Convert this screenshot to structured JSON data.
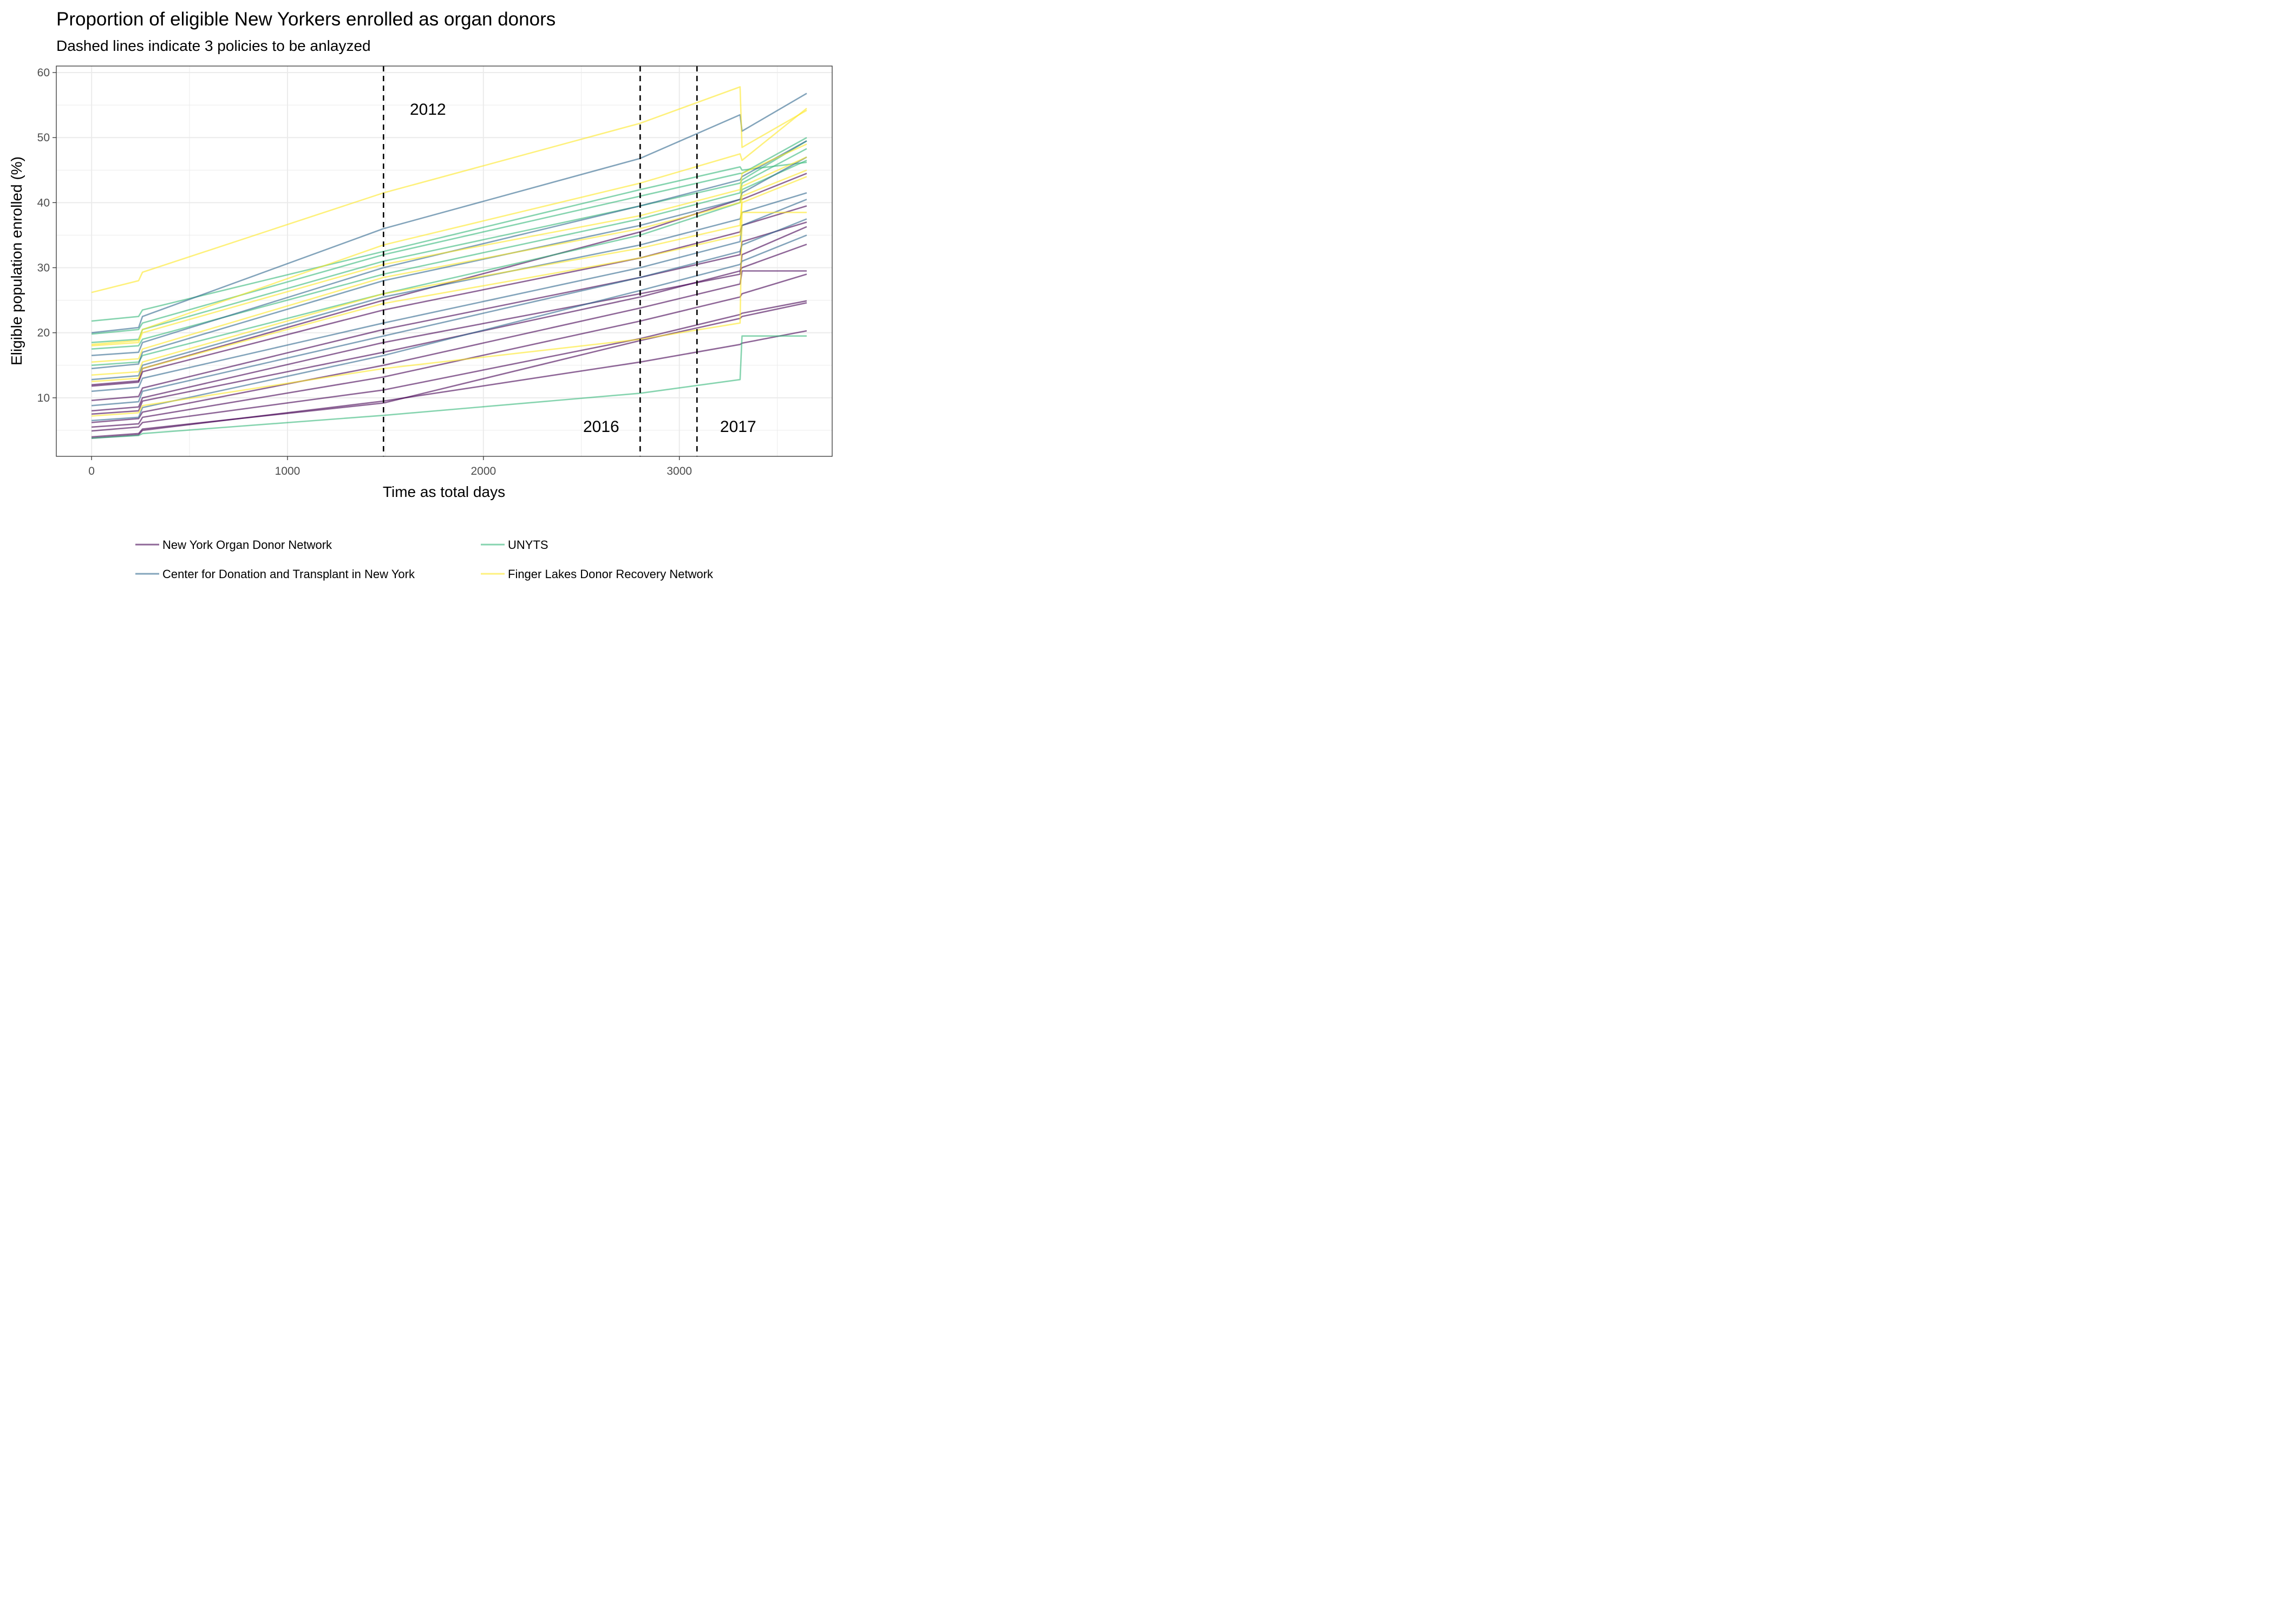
{
  "chart_data": {
    "type": "line",
    "title": "Proportion of eligible New Yorkers enrolled as organ donors",
    "subtitle": "Dashed lines indicate 3 policies to be anlayzed",
    "xlabel": "Time as total days",
    "ylabel": "Eligible population enrolled (%)",
    "xlim": [
      -180,
      3780
    ],
    "ylim": [
      1,
      61
    ],
    "x_ticks": [
      0,
      1000,
      2000,
      3000
    ],
    "y_ticks": [
      10,
      20,
      30,
      40,
      50,
      60
    ],
    "grid": true,
    "legend_position": "bottom",
    "policy_lines": [
      {
        "x": 1490,
        "label": "2012"
      },
      {
        "x": 2800,
        "label": "2016"
      },
      {
        "x": 3090,
        "label": "2017"
      }
    ],
    "legend": [
      {
        "name": "New York Organ Donor Network",
        "color": "#440154"
      },
      {
        "name": "UNYTS",
        "color": "#35b779"
      },
      {
        "name": "Center for Donation and Transplant in New York",
        "color": "#31688e"
      },
      {
        "name": "Finger Lakes Donor Recovery Network",
        "color": "#fde725"
      }
    ],
    "series_x": [
      0,
      240,
      260,
      1490,
      2800,
      3310,
      3320,
      3650
    ],
    "series": [
      {
        "group": "New York Organ Donor Network",
        "values": [
          3.8,
          4.3,
          5.0,
          9.5,
          15.5,
          18.2,
          18.4,
          20.3
        ]
      },
      {
        "group": "New York Organ Donor Network",
        "values": [
          4.0,
          4.5,
          5.2,
          9.2,
          18.8,
          22.2,
          22.5,
          24.6
        ]
      },
      {
        "group": "New York Organ Donor Network",
        "values": [
          4.9,
          5.5,
          6.2,
          11.2,
          19.1,
          22.8,
          23.0,
          24.9
        ]
      },
      {
        "group": "New York Organ Donor Network",
        "values": [
          5.5,
          6.0,
          7.0,
          13.2,
          21.8,
          25.5,
          26.0,
          29.0
        ]
      },
      {
        "group": "New York Organ Donor Network",
        "values": [
          6.2,
          6.8,
          7.8,
          15.0,
          23.8,
          27.5,
          29.5,
          29.5
        ]
      },
      {
        "group": "New York Organ Donor Network",
        "values": [
          7.5,
          8.0,
          9.5,
          17.0,
          25.5,
          29.5,
          30.0,
          33.6
        ]
      },
      {
        "group": "New York Organ Donor Network",
        "values": [
          8.0,
          8.6,
          10.0,
          18.5,
          26.0,
          29.0,
          32.0,
          36.3
        ]
      },
      {
        "group": "New York Organ Donor Network",
        "values": [
          9.6,
          10.2,
          11.5,
          20.5,
          28.5,
          32.0,
          34.0,
          37.0
        ]
      },
      {
        "group": "New York Organ Donor Network",
        "values": [
          11.8,
          12.4,
          14.0,
          23.5,
          31.5,
          35.5,
          36.5,
          39.5
        ]
      },
      {
        "group": "New York Organ Donor Network",
        "values": [
          12.0,
          12.6,
          14.5,
          25.0,
          35.5,
          40.5,
          40.5,
          44.5
        ]
      },
      {
        "group": "UNYTS",
        "values": [
          3.8,
          4.2,
          4.5,
          7.3,
          10.7,
          12.8,
          19.5,
          19.5
        ]
      },
      {
        "group": "UNYTS",
        "values": [
          15.0,
          15.5,
          16.5,
          26.0,
          35.0,
          40.0,
          42.0,
          46.5
        ]
      },
      {
        "group": "UNYTS",
        "values": [
          17.5,
          18.0,
          19.0,
          29.0,
          37.5,
          41.5,
          43.0,
          48.3
        ]
      },
      {
        "group": "UNYTS",
        "values": [
          18.5,
          19.0,
          20.5,
          31.0,
          39.5,
          43.0,
          43.5,
          49.5
        ]
      },
      {
        "group": "UNYTS",
        "values": [
          19.8,
          20.5,
          21.5,
          32.0,
          41.0,
          44.5,
          44.5,
          50.0
        ]
      },
      {
        "group": "UNYTS",
        "values": [
          21.8,
          22.5,
          23.5,
          32.5,
          42.0,
          45.5,
          45.0,
          46.2
        ]
      },
      {
        "group": "Center for Donation and Transplant in New York",
        "values": [
          6.5,
          7.0,
          8.5,
          16.5,
          26.5,
          30.5,
          31.0,
          35.0
        ]
      },
      {
        "group": "Center for Donation and Transplant in New York",
        "values": [
          8.8,
          9.4,
          11.0,
          19.5,
          28.5,
          32.5,
          33.5,
          37.5
        ]
      },
      {
        "group": "Center for Donation and Transplant in New York",
        "values": [
          11.0,
          11.6,
          13.0,
          21.5,
          30.0,
          34.0,
          36.5,
          40.5
        ]
      },
      {
        "group": "Center for Donation and Transplant in New York",
        "values": [
          12.8,
          13.4,
          15.0,
          25.5,
          33.5,
          37.5,
          38.5,
          41.5
        ]
      },
      {
        "group": "Center for Donation and Transplant in New York",
        "values": [
          14.5,
          15.2,
          17.0,
          28.0,
          36.5,
          40.5,
          41.5,
          47.0
        ]
      },
      {
        "group": "Center for Donation and Transplant in New York",
        "values": [
          16.5,
          17.0,
          18.5,
          30.0,
          39.5,
          43.5,
          44.0,
          49.5
        ]
      },
      {
        "group": "Center for Donation and Transplant in New York",
        "values": [
          20.0,
          20.8,
          22.5,
          36.0,
          46.8,
          53.5,
          51.0,
          56.8
        ]
      },
      {
        "group": "Finger Lakes Donor Recovery Network",
        "values": [
          7.2,
          7.7,
          8.8,
          14.5,
          19.0,
          21.5,
          38.5,
          38.5
        ]
      },
      {
        "group": "Finger Lakes Donor Recovery Network",
        "values": [
          12.5,
          13.0,
          14.5,
          24.5,
          31.5,
          35.0,
          40.0,
          44.0
        ]
      },
      {
        "group": "Finger Lakes Donor Recovery Network",
        "values": [
          13.5,
          14.0,
          15.5,
          26.0,
          33.0,
          36.5,
          41.0,
          45.0
        ]
      },
      {
        "group": "Finger Lakes Donor Recovery Network",
        "values": [
          15.5,
          16.0,
          17.5,
          28.5,
          36.0,
          40.0,
          42.5,
          47.0
        ]
      },
      {
        "group": "Finger Lakes Donor Recovery Network",
        "values": [
          18.0,
          18.5,
          20.0,
          30.5,
          38.0,
          42.0,
          44.5,
          49.0
        ]
      },
      {
        "group": "Finger Lakes Donor Recovery Network",
        "values": [
          18.2,
          18.8,
          20.5,
          33.5,
          43.0,
          47.5,
          46.5,
          54.5
        ]
      },
      {
        "group": "Finger Lakes Donor Recovery Network",
        "values": [
          26.2,
          28.0,
          29.3,
          41.5,
          52.2,
          57.8,
          48.5,
          54.2
        ]
      }
    ]
  }
}
